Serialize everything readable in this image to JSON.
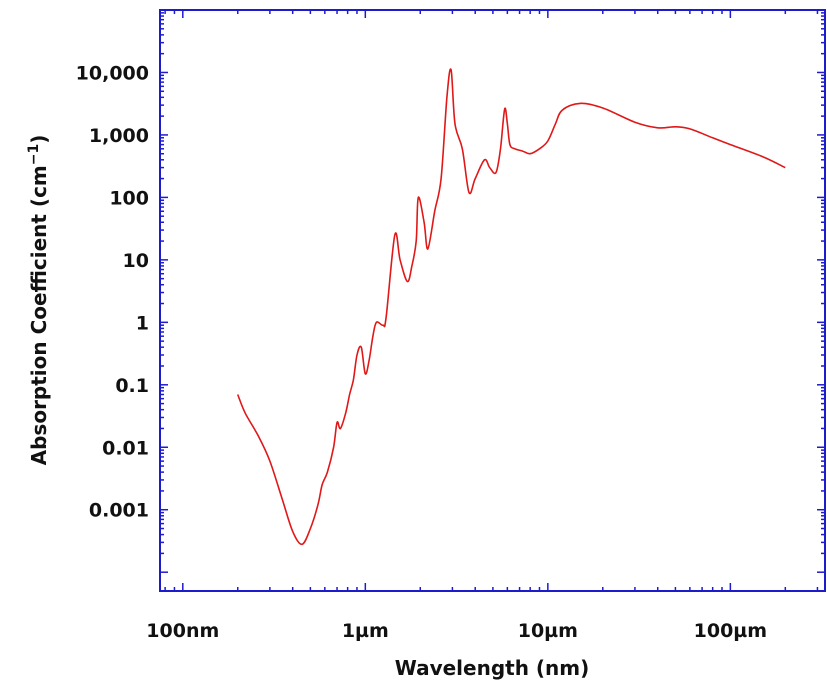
{
  "chart_data": {
    "type": "line",
    "title": "",
    "xlabel": "Wavelength (nm)",
    "ylabel": {
      "text": "Absorption Coefficient (cm",
      "sup": "−1",
      "close": ")"
    },
    "x_scale": "log",
    "y_scale": "log",
    "xlim": [
      7.5e-08,
      0.00033
    ],
    "ylim": [
      5e-05,
      100000
    ],
    "grid": false,
    "legend": false,
    "x_ticks": [
      {
        "value": 1e-07,
        "label": "100nm"
      },
      {
        "value": 1e-06,
        "label": "1µm"
      },
      {
        "value": 1e-05,
        "label": "10µm"
      },
      {
        "value": 0.0001,
        "label": "100µm"
      }
    ],
    "y_ticks": [
      {
        "value": 0.001,
        "label": "0.001"
      },
      {
        "value": 0.01,
        "label": "0.01"
      },
      {
        "value": 0.1,
        "label": "0.1"
      },
      {
        "value": 1,
        "label": "1"
      },
      {
        "value": 10,
        "label": "10"
      },
      {
        "value": 100,
        "label": "100"
      },
      {
        "value": 1000,
        "label": "1,000"
      },
      {
        "value": 10000,
        "label": "10,000"
      }
    ],
    "series": [
      {
        "color": "#e01818",
        "x": [
          2e-07,
          2.2e-07,
          2.6e-07,
          3e-07,
          3.5e-07,
          4e-07,
          4.5e-07,
          5e-07,
          5.5e-07,
          5.8e-07,
          6.2e-07,
          6.7e-07,
          7e-07,
          7.3e-07,
          7.8e-07,
          8.2e-07,
          8.6e-07,
          9e-07,
          9.5e-07,
          1e-06,
          1.05e-06,
          1.1e-06,
          1.15e-06,
          1.25e-06,
          1.3e-06,
          1.45e-06,
          1.55e-06,
          1.7e-06,
          1.8e-06,
          1.9e-06,
          1.95e-06,
          2.1e-06,
          2.2e-06,
          2.4e-06,
          2.6e-06,
          2.8e-06,
          2.95e-06,
          3.1e-06,
          3.4e-06,
          3.7e-06,
          4e-06,
          4.5e-06,
          4.8e-06,
          5.2e-06,
          5.5e-06,
          5.8e-06,
          6e-06,
          6.2e-06,
          6.6e-06,
          7.3e-06,
          8e-06,
          9e-06,
          1e-05,
          1.1e-05,
          1.2e-05,
          1.5e-05,
          2e-05,
          3e-05,
          4e-05,
          5e-05,
          6e-05,
          8e-05,
          0.0001,
          0.00015,
          0.0002
        ],
        "y": [
          0.07,
          0.035,
          0.015,
          0.006,
          0.0015,
          0.00045,
          0.00028,
          0.0005,
          0.0012,
          0.0025,
          0.004,
          0.01,
          0.025,
          0.02,
          0.035,
          0.07,
          0.12,
          0.3,
          0.4,
          0.15,
          0.25,
          0.6,
          1.0,
          0.9,
          1.2,
          25.0,
          10.0,
          4.5,
          8.0,
          20.0,
          100.0,
          40.0,
          15.0,
          60.0,
          200.0,
          4000.0,
          11000.0,
          1500.0,
          600.0,
          120.0,
          200.0,
          400.0,
          300.0,
          250.0,
          600.0,
          2600.0,
          1500.0,
          700.0,
          600.0,
          550.0,
          500.0,
          600.0,
          800.0,
          1500.0,
          2500.0,
          3200.0,
          2700.0,
          1600.0,
          1300.0,
          1350.0,
          1250.0,
          900.0,
          700.0,
          450.0,
          300.0
        ]
      }
    ]
  }
}
